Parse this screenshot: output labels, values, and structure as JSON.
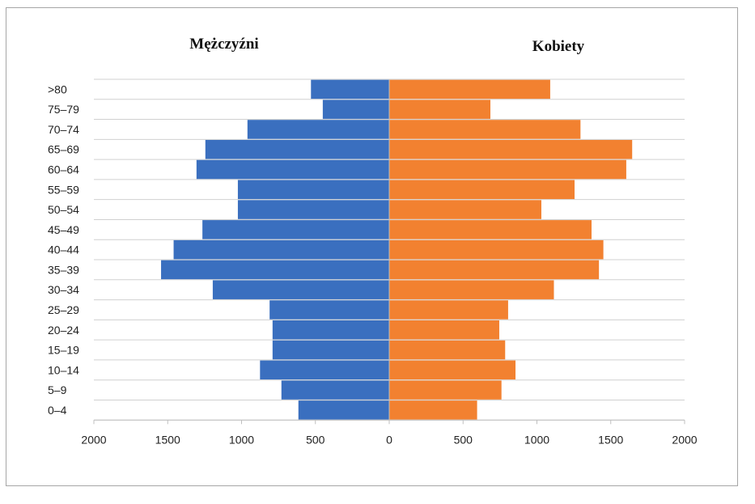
{
  "chart_data": {
    "type": "bar",
    "orientation": "horizontal",
    "subtype": "population-pyramid",
    "categories": [
      "0–4",
      "5–9",
      "10–14",
      "15–19",
      "20–24",
      "25–29",
      "30–34",
      "35–39",
      "40–44",
      "45–49",
      "50–54",
      "55–59",
      "60–64",
      "65–69",
      "70–74",
      "75–79",
      ">80"
    ],
    "series": [
      {
        "name": "Mężczyźni",
        "color": "#3a6fbf",
        "values": [
          615,
          730,
          875,
          790,
          790,
          810,
          1195,
          1545,
          1460,
          1265,
          1025,
          1025,
          1305,
          1245,
          960,
          450,
          530
        ]
      },
      {
        "name": "Kobiety",
        "color": "#f28130",
        "values": [
          595,
          760,
          855,
          785,
          745,
          805,
          1115,
          1420,
          1450,
          1370,
          1030,
          1255,
          1605,
          1645,
          1295,
          685,
          1090
        ]
      }
    ],
    "xlim": [
      -2000,
      2000
    ],
    "x_ticks": [
      2000,
      1500,
      1000,
      500,
      0,
      500,
      1000,
      1500,
      2000
    ],
    "grid": true,
    "legend": "none"
  }
}
